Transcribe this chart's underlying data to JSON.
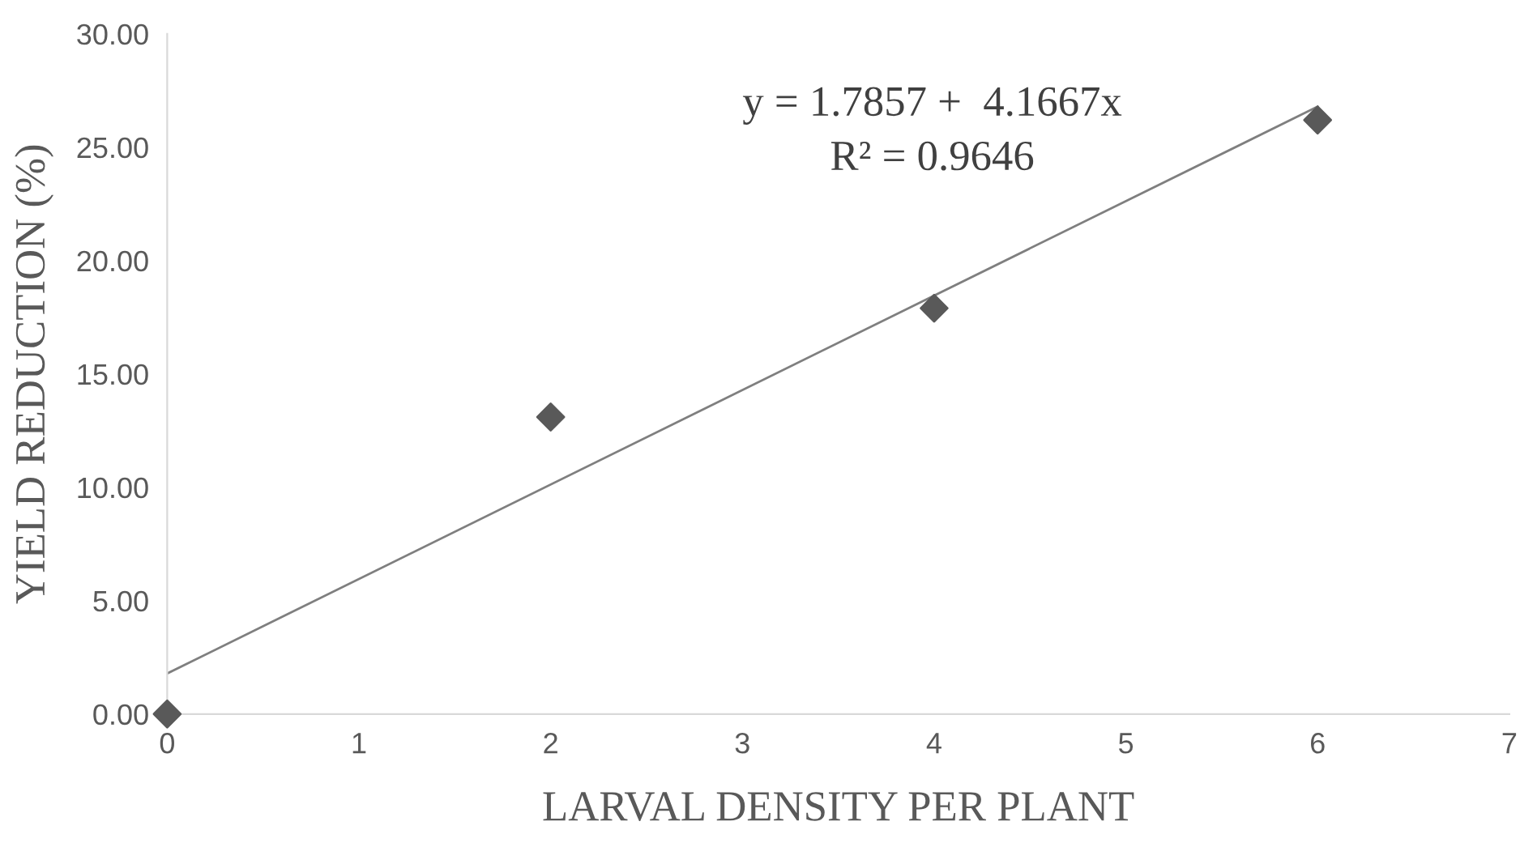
{
  "chart_data": {
    "type": "scatter",
    "xlabel": "LARVAL DENSITY PER PLANT",
    "ylabel": "YIELD REDUCTION (%)",
    "annotations": [
      "y = 1.7857 +  4.1667x",
      "R² = 0.9646"
    ],
    "series": [
      {
        "color": "#595959",
        "x": [
          0,
          2,
          4,
          6
        ],
        "values": [
          0,
          13.1,
          17.9,
          26.2
        ],
        "marker": "diamond"
      },
      {
        "type": "line",
        "color": "#7f7f7f",
        "x": [
          0,
          6
        ],
        "values": [
          1.79,
          26.79
        ],
        "marker": "none",
        "line_style": "solid"
      }
    ],
    "xlim": [
      0,
      7
    ],
    "xticks": [
      0,
      1,
      2,
      3,
      4,
      5,
      6,
      7
    ],
    "ylim": [
      0,
      30
    ],
    "yticks": [
      {
        "value": 0,
        "label": "0.00"
      },
      {
        "value": 5,
        "label": "5.00"
      },
      {
        "value": 10,
        "label": "10.00"
      },
      {
        "value": 15,
        "label": "15.00"
      },
      {
        "value": 20,
        "label": "20.00"
      },
      {
        "value": 25,
        "label": "25.00"
      },
      {
        "value": 30,
        "label": "30.00"
      }
    ],
    "grid": false,
    "legend": false
  }
}
